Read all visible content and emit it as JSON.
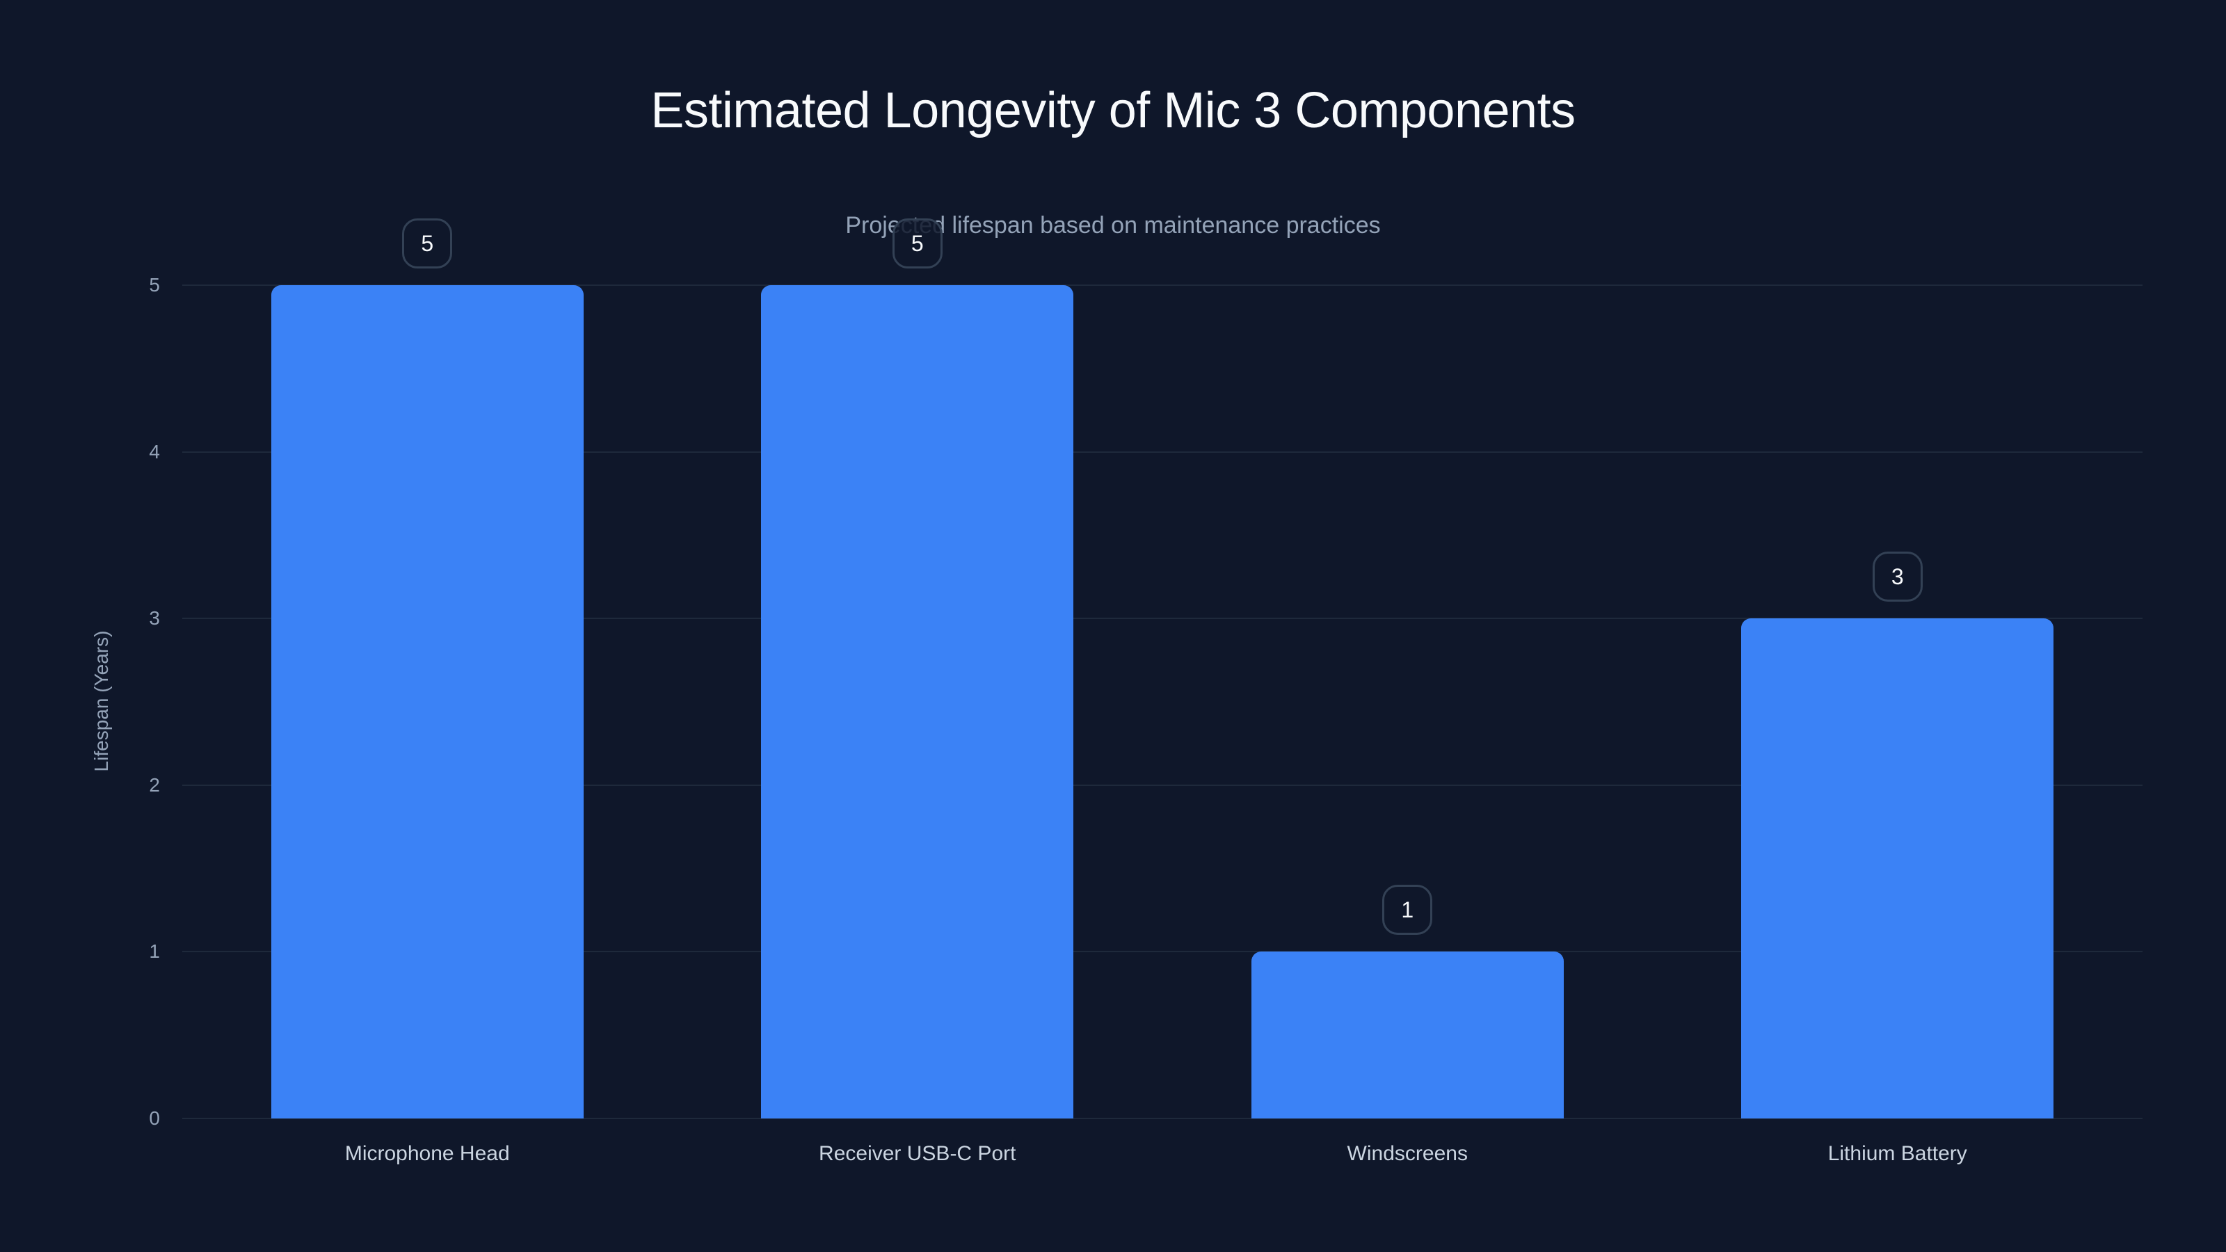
{
  "chart_data": {
    "type": "bar",
    "title": "Estimated Longevity of Mic 3 Components",
    "subtitle": "Projected lifespan based on maintenance practices",
    "categories": [
      "Microphone Head",
      "Receiver USB-C Port",
      "Windscreens",
      "Lithium Battery"
    ],
    "values": [
      5,
      5,
      1,
      3
    ],
    "xlabel": "",
    "ylabel": "Lifespan (Years)",
    "ylim": [
      0,
      5
    ],
    "yticks": [
      0,
      1,
      2,
      3,
      4,
      5
    ],
    "grid": true,
    "legend": null,
    "data_labels": [
      "5",
      "5",
      "1",
      "3"
    ],
    "colors": {
      "bar": "#3b82f6",
      "background": "#0f172a",
      "grid": "#1e293b"
    }
  },
  "yticks_labels": [
    "0",
    "1",
    "2",
    "3",
    "4",
    "5"
  ]
}
